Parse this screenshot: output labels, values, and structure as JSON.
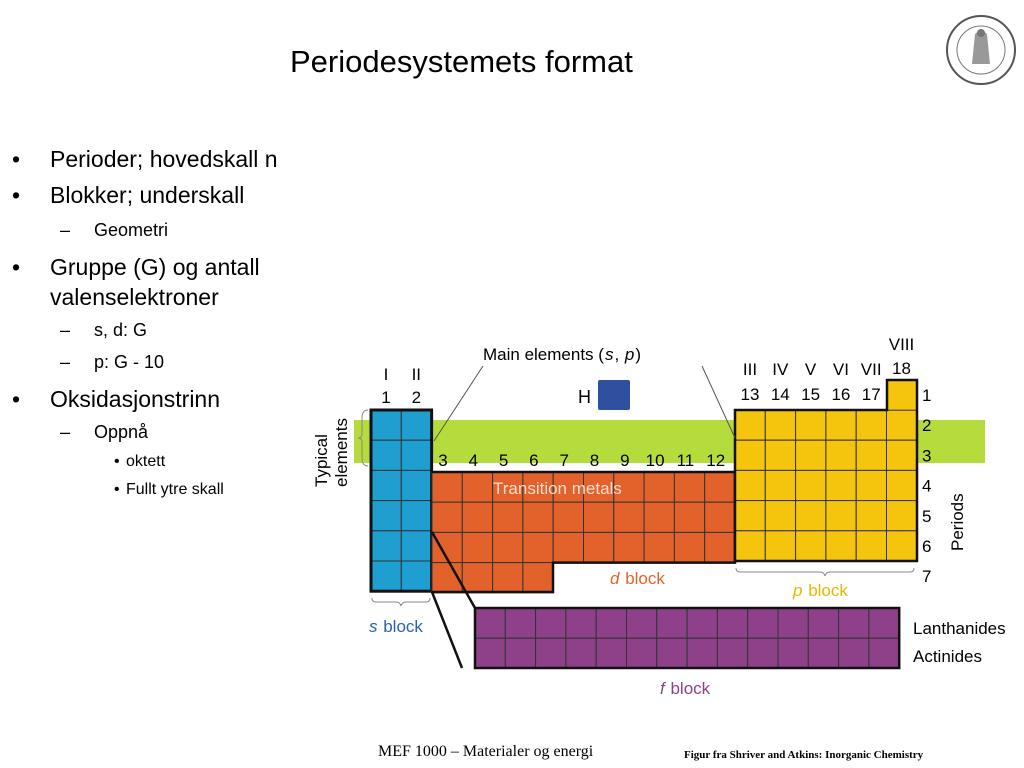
{
  "slide": {
    "title": "Periodesystemets format",
    "bullets": [
      {
        "level": 1,
        "marker": "•",
        "text": "Perioder; hovedskall n"
      },
      {
        "level": 1,
        "marker": "•",
        "text": "Blokker; underskall"
      },
      {
        "level": 2,
        "marker": "–",
        "text": "Geometri"
      },
      {
        "level": 1,
        "marker": "•",
        "text": "Gruppe (G) og antall"
      },
      {
        "level": 1,
        "marker": "",
        "text": "valenselektroner"
      },
      {
        "level": 2,
        "marker": "–",
        "text": "s, d: G"
      },
      {
        "level": 2,
        "marker": "–",
        "text": "p: G - 10"
      },
      {
        "level": 1,
        "marker": "•",
        "text": "Oksidasjonstrinn"
      },
      {
        "level": 2,
        "marker": "–",
        "text": "Oppnå"
      },
      {
        "level": 3,
        "marker": "•",
        "text": "oktett"
      },
      {
        "level": 3,
        "marker": "•",
        "text": "Fullt ytre skall"
      }
    ],
    "footer": "MEF 1000 – Materialer og energi",
    "credit": "Figur fra Shriver and Atkins: Inorganic Chemistry",
    "logo": "university-seal"
  },
  "figure": {
    "main_elements_label": "Main elements (",
    "main_s": "s",
    "main_comma": ", ",
    "main_p": "p",
    "main_close": ")",
    "hydrogen": "H",
    "typical_elements": [
      "Typical",
      "elements"
    ],
    "transition_metals": "Transition metals",
    "s_block": [
      "s",
      " block"
    ],
    "d_block": [
      "d",
      " block"
    ],
    "p_block": [
      "p",
      " block"
    ],
    "f_block": [
      "f",
      " block"
    ],
    "lanthanides": "Lanthanides",
    "actinides": "Actinides",
    "periods_label": "Periods",
    "periods": [
      "1",
      "2",
      "3",
      "4",
      "5",
      "6",
      "7"
    ],
    "groups_s": [
      {
        "roman": "I",
        "num": "1"
      },
      {
        "roman": "II",
        "num": "2"
      }
    ],
    "groups_d": [
      "3",
      "4",
      "5",
      "6",
      "7",
      "8",
      "9",
      "10",
      "11",
      "12"
    ],
    "groups_p": [
      {
        "roman": "III",
        "num": "13"
      },
      {
        "roman": "IV",
        "num": "14"
      },
      {
        "roman": "V",
        "num": "15"
      },
      {
        "roman": "VI",
        "num": "16"
      },
      {
        "roman": "VII",
        "num": "17"
      },
      {
        "roman": "VIII",
        "num": "18"
      }
    ],
    "colors": {
      "s": "#1f9fd0",
      "d": "#e3622c",
      "p": "#f5c40c",
      "f": "#8e4189",
      "typical": "#b5dc3c",
      "hydrogen": "#2f4f9f",
      "s_label": "#2a62b0",
      "d_label": "#e3622c",
      "p_label": "#e8b800",
      "f_label": "#8e4189"
    }
  }
}
